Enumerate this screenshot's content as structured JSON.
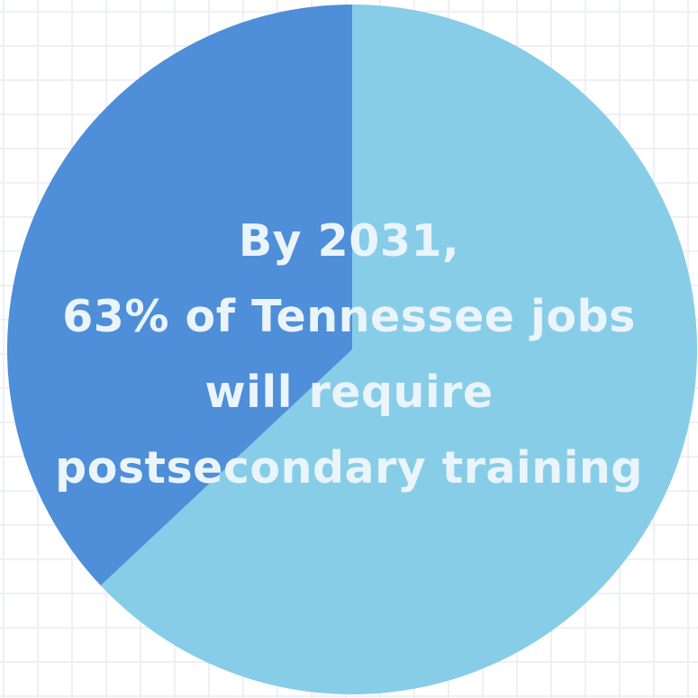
{
  "chart_data": {
    "type": "pie",
    "slices": [
      {
        "value": 63,
        "color": "#87cde8"
      },
      {
        "value": 37,
        "color": "#4f8ed8"
      }
    ],
    "annotation": [
      "By 2031,",
      "63% of Tennessee jobs",
      "will require",
      "postsecondary training"
    ]
  }
}
